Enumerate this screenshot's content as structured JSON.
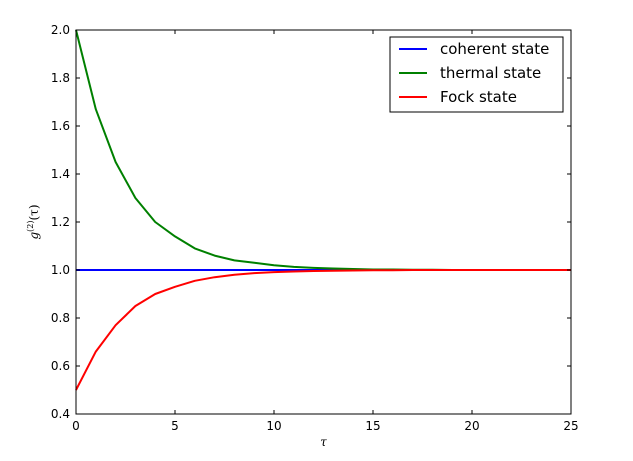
{
  "chart_data": {
    "type": "line",
    "title": "",
    "xlabel": "τ",
    "ylabel": "g(2)(τ)",
    "ylabel_main": "g",
    "ylabel_sup": "(2)",
    "ylabel_arg": "(τ)",
    "xlim": [
      0,
      25
    ],
    "ylim": [
      0.4,
      2.0
    ],
    "x_ticks": [
      0,
      5,
      10,
      15,
      20,
      25
    ],
    "x_tick_labels": [
      "0",
      "5",
      "10",
      "15",
      "20",
      "25"
    ],
    "y_ticks": [
      0.4,
      0.6,
      0.8,
      1.0,
      1.2,
      1.4,
      1.6,
      1.8,
      2.0
    ],
    "y_tick_labels": [
      "0.4",
      "0.6",
      "0.8",
      "1.0",
      "1.2",
      "1.4",
      "1.6",
      "1.8",
      "2.0"
    ],
    "grid": false,
    "legend_position": "top-right",
    "x": [
      0,
      1,
      2,
      3,
      4,
      5,
      6,
      7,
      8,
      9,
      10,
      11,
      12,
      13,
      14,
      15,
      16,
      17,
      18,
      19,
      20,
      21,
      22,
      23,
      24,
      25
    ],
    "series": [
      {
        "name": "coherent state",
        "color": "#0000ff",
        "values": [
          1.0,
          1.0,
          1.0,
          1.0,
          1.0,
          1.0,
          1.0,
          1.0,
          1.0,
          1.0,
          1.0,
          1.0,
          1.0,
          1.0,
          1.0,
          1.0,
          1.0,
          1.0,
          1.0,
          1.0,
          1.0,
          1.0,
          1.0,
          1.0,
          1.0,
          1.0
        ]
      },
      {
        "name": "thermal state",
        "color": "#008000",
        "values": [
          2.0,
          1.67,
          1.45,
          1.3,
          1.2,
          1.14,
          1.09,
          1.06,
          1.04,
          1.03,
          1.02,
          1.013,
          1.009,
          1.006,
          1.004,
          1.002,
          1.002,
          1.001,
          1.001,
          1.0,
          1.0,
          1.0,
          1.0,
          1.0,
          1.0,
          1.0
        ]
      },
      {
        "name": "Fock state",
        "color": "#ff0000",
        "values": [
          0.5,
          0.66,
          0.77,
          0.85,
          0.9,
          0.93,
          0.955,
          0.97,
          0.98,
          0.987,
          0.991,
          0.994,
          0.996,
          0.997,
          0.998,
          0.999,
          0.999,
          1.0,
          1.0,
          1.0,
          1.0,
          1.0,
          1.0,
          1.0,
          1.0,
          1.0
        ]
      }
    ]
  }
}
